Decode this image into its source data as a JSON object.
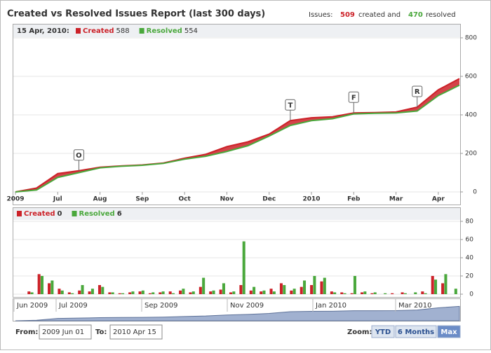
{
  "header": {
    "title": "Created vs Resolved Issues Report (last 300 days)",
    "summary_label": "Issues:",
    "created": 509,
    "created_text": "created and",
    "resolved": 470,
    "resolved_text": "resolved"
  },
  "chart_data": [
    {
      "type": "line",
      "legend_date": "15 Apr, 2010:",
      "categories": [
        "2009",
        null,
        "Jul",
        null,
        "Aug",
        null,
        "Sep",
        null,
        "Oct",
        null,
        "Nov",
        null,
        "Dec",
        null,
        "2010",
        null,
        "Feb",
        null,
        "Mar",
        null,
        "Apr",
        null
      ],
      "flags": [
        null,
        null,
        null,
        "O",
        null,
        null,
        null,
        null,
        null,
        null,
        null,
        null,
        null,
        "T",
        null,
        null,
        "F",
        null,
        null,
        "R",
        null,
        null
      ],
      "series": [
        {
          "name": "Created",
          "color": "#cc2229",
          "values": [
            0,
            20,
            95,
            110,
            128,
            135,
            140,
            150,
            175,
            195,
            235,
            260,
            300,
            370,
            385,
            390,
            410,
            412,
            415,
            440,
            530,
            588
          ]
        },
        {
          "name": "Resolved",
          "color": "#4aa83c",
          "values": [
            0,
            10,
            75,
            100,
            125,
            133,
            138,
            148,
            170,
            185,
            210,
            240,
            290,
            345,
            370,
            380,
            405,
            408,
            410,
            420,
            500,
            554
          ]
        }
      ],
      "ylim": [
        0,
        800
      ],
      "yticks": [
        0,
        200,
        400,
        600,
        800
      ],
      "grid": true
    },
    {
      "type": "bar",
      "series": [
        {
          "name": "Created",
          "color": "#cc2229",
          "values": [
            0,
            3,
            22,
            12,
            6,
            2,
            4,
            3,
            10,
            2,
            1,
            2,
            3,
            1,
            2,
            3,
            4,
            2,
            8,
            3,
            5,
            2,
            10,
            4,
            3,
            6,
            12,
            4,
            8,
            10,
            14,
            3,
            2,
            1,
            2,
            1,
            0,
            1,
            2,
            0,
            3,
            20,
            12,
            0
          ]
        },
        {
          "name": "Resolved",
          "color": "#4aa83c",
          "values": [
            0,
            2,
            20,
            15,
            4,
            1,
            10,
            6,
            8,
            2,
            1,
            3,
            4,
            2,
            3,
            1,
            6,
            3,
            18,
            4,
            12,
            3,
            58,
            8,
            4,
            3,
            10,
            6,
            15,
            20,
            18,
            2,
            1,
            20,
            3,
            2,
            1,
            0,
            1,
            2,
            1,
            16,
            22,
            6
          ]
        }
      ],
      "ylim": [
        0,
        80
      ],
      "yticks": [
        0,
        20,
        40,
        60,
        80
      ],
      "grid": true
    }
  ],
  "navigator": {
    "labels": [
      "Jun 2009",
      "Jul 2009",
      "Sep 2009",
      "Nov 2009",
      "Jan 2010",
      "Mar 2010"
    ]
  },
  "range": {
    "from_label": "From:",
    "from": "2009 Jun 01",
    "to_label": "To:",
    "to": "2010 Apr 15"
  },
  "zoom": {
    "label": "Zoom:",
    "buttons": [
      "YTD",
      "6 Months",
      "Max"
    ],
    "selected": "Max"
  }
}
